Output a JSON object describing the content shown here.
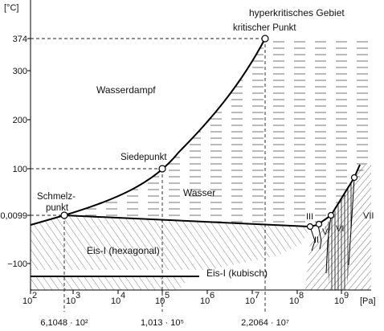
{
  "diagram": {
    "y_axis": {
      "unit": "[°C]",
      "ticks": [
        "374",
        "300",
        "200",
        "100",
        "0,0099",
        "−100"
      ]
    },
    "x_axis": {
      "unit": "[Pa]",
      "ticks": [
        {
          "base": "10",
          "exp": "2"
        },
        {
          "base": "10",
          "exp": "3"
        },
        {
          "base": "10",
          "exp": "4"
        },
        {
          "base": "10",
          "exp": "5"
        },
        {
          "base": "10",
          "exp": "6"
        },
        {
          "base": "10",
          "exp": "7"
        },
        {
          "base": "10",
          "exp": "8"
        },
        {
          "base": "10",
          "exp": "9"
        }
      ]
    },
    "bottom_values": [
      "6,1048 · 10²",
      "1,013 · 10⁵",
      "2,2064 · 10⁷"
    ],
    "regions": {
      "hyperkritisch": "hyperkritisches Gebiet",
      "wasserdampf": "Wasserdampf",
      "wasser": "Wasser",
      "eis_hex": "Eis-I (hexagonal)",
      "eis_kub": "Eis-I (kubisch)"
    },
    "points": {
      "kritisch": "kritischer Punkt",
      "siedepunkt": "Siedepunkt",
      "schmelz_1": "Schmelz-",
      "schmelz_2": "punkt"
    },
    "ice_phases": [
      "II",
      "III",
      "V",
      "VI",
      "VII"
    ]
  }
}
